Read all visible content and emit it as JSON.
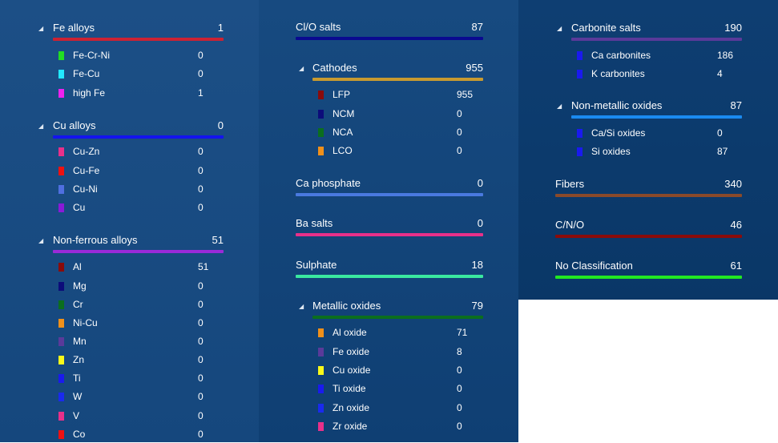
{
  "columns": [
    {
      "groups": [
        {
          "name": "Fe alloys",
          "count": "1",
          "color": "#cc2233",
          "collapsible": true,
          "items": [
            {
              "name": "Fe-Cr-Ni",
              "count": "0",
              "color": "#22dd22"
            },
            {
              "name": "Fe-Cu",
              "count": "0",
              "color": "#22e8ff"
            },
            {
              "name": "high Fe",
              "count": "1",
              "color": "#ee22ee"
            }
          ]
        },
        {
          "name": "Cu alloys",
          "count": "0",
          "color": "#1414ee",
          "collapsible": true,
          "items": [
            {
              "name": "Cu-Zn",
              "count": "0",
              "color": "#e8308a"
            },
            {
              "name": "Cu-Fe",
              "count": "0",
              "color": "#ee1111"
            },
            {
              "name": "Cu-Ni",
              "count": "0",
              "color": "#4f6fe0"
            },
            {
              "name": "Cu",
              "count": "0",
              "color": "#8a1ad8"
            }
          ]
        },
        {
          "name": "Non-ferrous alloys",
          "count": "51",
          "color": "#9a2ad8",
          "collapsible": true,
          "items": [
            {
              "name": "Al",
              "count": "51",
              "color": "#8a0b0b"
            },
            {
              "name": "Mg",
              "count": "0",
              "color": "#0c0c7a"
            },
            {
              "name": "Cr",
              "count": "0",
              "color": "#0b6e1e"
            },
            {
              "name": "Ni-Cu",
              "count": "0",
              "color": "#f0901a"
            },
            {
              "name": "Mn",
              "count": "0",
              "color": "#5a3a9a"
            },
            {
              "name": "Zn",
              "count": "0",
              "color": "#f8f81a"
            },
            {
              "name": "Ti",
              "count": "0",
              "color": "#1a1aee"
            },
            {
              "name": "W",
              "count": "0",
              "color": "#1a2aee"
            },
            {
              "name": "V",
              "count": "0",
              "color": "#e8308a"
            },
            {
              "name": "Co",
              "count": "0",
              "color": "#ee1111"
            }
          ]
        }
      ]
    },
    {
      "groups": [
        {
          "name": "Cl/O salts",
          "count": "87",
          "color": "#0a0a90",
          "collapsible": false,
          "items": []
        },
        {
          "name": "Cathodes",
          "count": "955",
          "color": "#c89a30",
          "collapsible": true,
          "items": [
            {
              "name": "LFP",
              "count": "955",
              "color": "#8a0b0b"
            },
            {
              "name": "NCM",
              "count": "0",
              "color": "#0c0c7a"
            },
            {
              "name": "NCA",
              "count": "0",
              "color": "#0b6e1e"
            },
            {
              "name": "LCO",
              "count": "0",
              "color": "#f0901a"
            }
          ]
        },
        {
          "name": "Ca phosphate",
          "count": "0",
          "color": "#4a7ae0",
          "collapsible": false,
          "items": []
        },
        {
          "name": "Ba salts",
          "count": "0",
          "color": "#e8308a",
          "collapsible": false,
          "items": []
        },
        {
          "name": "Sulphate",
          "count": "18",
          "color": "#3ae8a0",
          "collapsible": false,
          "items": []
        },
        {
          "name": "Metallic oxides",
          "count": "79",
          "color": "#0b6e1e",
          "collapsible": true,
          "items": [
            {
              "name": "Al oxide",
              "count": "71",
              "color": "#f0901a"
            },
            {
              "name": "Fe oxide",
              "count": "8",
              "color": "#5a3a9a"
            },
            {
              "name": "Cu oxide",
              "count": "0",
              "color": "#f8f81a"
            },
            {
              "name": "Ti oxide",
              "count": "0",
              "color": "#1a1aee"
            },
            {
              "name": "Zn oxide",
              "count": "0",
              "color": "#1a2aee"
            },
            {
              "name": "Zr oxide",
              "count": "0",
              "color": "#e8308a"
            }
          ]
        }
      ]
    },
    {
      "groups": [
        {
          "name": "Carbonite salts",
          "count": "190",
          "color": "#5a3a9a",
          "collapsible": true,
          "items": [
            {
              "name": "Ca carbonites",
              "count": "186",
              "color": "#1a1aee"
            },
            {
              "name": "K carbonites",
              "count": "4",
              "color": "#1a1aee"
            }
          ]
        },
        {
          "name": "Non-metallic oxides",
          "count": "87",
          "color": "#1a8af0",
          "collapsible": true,
          "items": [
            {
              "name": "Ca/Si oxides",
              "count": "0",
              "color": "#1a1aee"
            },
            {
              "name": "Si oxides",
              "count": "87",
              "color": "#1a1aee"
            }
          ]
        },
        {
          "name": "Fibers",
          "count": "340",
          "color": "#8a4a2a",
          "collapsible": false,
          "items": []
        },
        {
          "name": "C/N/O",
          "count": "46",
          "color": "#8a0b0b",
          "collapsible": false,
          "items": []
        },
        {
          "name": "No Classification",
          "count": "61",
          "color": "#22e822",
          "collapsible": false,
          "items": []
        }
      ]
    }
  ]
}
